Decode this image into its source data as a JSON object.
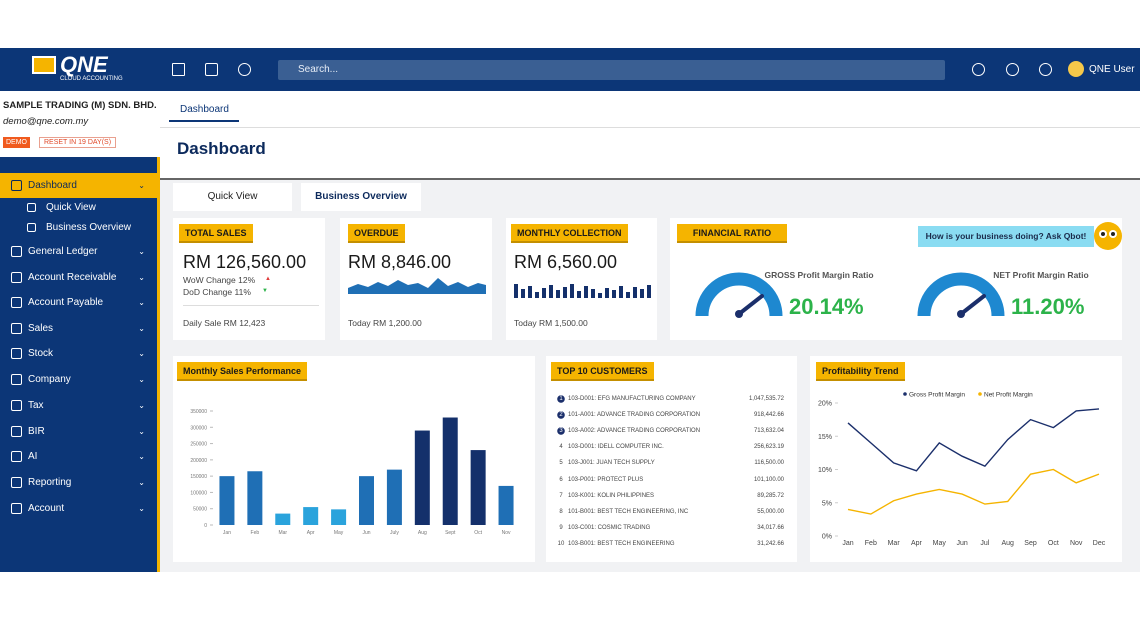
{
  "topbar": {
    "logo": "QNE",
    "logo_sub": "CLOUD ACCOUNTING",
    "search": "Search...",
    "user": "QNE User"
  },
  "company": {
    "name": "SAMPLE TRADING (M) SDN. BHD.",
    "email": "demo@qne.com.my",
    "demo": "DEMO",
    "reset": "RESET IN 19 DAY(S)"
  },
  "menu": [
    "Dashboard",
    "Quick View",
    "Business Overview",
    "General Ledger",
    "Account Receivable",
    "Account Payable",
    "Sales",
    "Stock",
    "Company",
    "Tax",
    "BIR",
    "AI",
    "Reporting",
    "Account"
  ],
  "page_tab": "Dashboard",
  "heading": "Dashboard",
  "tabs": [
    "Quick View",
    "Business Overview"
  ],
  "cards": {
    "total_sales": {
      "title": "TOTAL SALES",
      "amount": "RM 126,560.00",
      "wow": "WoW Change 12%",
      "dod": "DoD Change 11%",
      "footer": "Daily Sale RM 12,423"
    },
    "overdue": {
      "title": "OVERDUE",
      "amount": "RM 8,846.00",
      "footer": "Today RM 1,200.00"
    },
    "collection": {
      "title": "MONTHLY COLLECTION",
      "amount": "RM 6,560.00",
      "footer": "Today RM 1,500.00"
    },
    "financial": {
      "title": "FINANCIAL RATIO",
      "gross_label": "GROSS Profit Margin Ratio",
      "gross_value": "20.14%",
      "net_label": "NET Profit Margin Ratio",
      "net_value": "11.20%",
      "qbot": "How is your business doing? Ask Qbot!"
    }
  },
  "sales_chart": {
    "type": "bar",
    "title": "Monthly Sales Performance",
    "categories": [
      "Jan",
      "Feb",
      "Mar",
      "Apr",
      "May",
      "Jun",
      "July",
      "Aug",
      "Sept",
      "Oct",
      "Nov"
    ],
    "values": [
      150000,
      165000,
      35000,
      55000,
      48000,
      150000,
      170000,
      290000,
      330000,
      230000,
      120000
    ],
    "colors": [
      "#1f6fb5",
      "#1f6fb5",
      "#2aa3dc",
      "#2aa3dc",
      "#2aa3dc",
      "#1f6fb5",
      "#1f6fb5",
      "#14306b",
      "#14306b",
      "#14306b",
      "#1f6fb5"
    ],
    "ylim": [
      0,
      350000
    ],
    "yticks": [
      0,
      50000,
      100000,
      150000,
      200000,
      250000,
      300000,
      350000
    ]
  },
  "customers": {
    "title": "TOP 10 CUSTOMERS",
    "rows": [
      [
        "1",
        "103-D001: EFG MANUFACTURING COMPANY",
        "1,047,535.72"
      ],
      [
        "2",
        "101-A001: ADVANCE TRADING CORPORATION",
        "918,442.66"
      ],
      [
        "3",
        "103-A002: ADVANCE TRADING CORPORATION",
        "713,632.04"
      ],
      [
        "4",
        "103-D001: IDELL COMPUTER INC.",
        "256,623.19"
      ],
      [
        "5",
        "103-J001: JUAN TECH SUPPLY",
        "116,500.00"
      ],
      [
        "6",
        "103-P001: PROTECT PLUS",
        "101,100.00"
      ],
      [
        "7",
        "103-K001: KOLIN PHILIPPINES",
        "89,285.72"
      ],
      [
        "8",
        "101-B001: BEST TECH ENGINEERING, INC",
        "55,000.00"
      ],
      [
        "9",
        "103-C001: COSMIC TRADING",
        "34,017.66"
      ],
      [
        "10",
        "103-B001: BEST TECH ENGINEERING",
        "31,242.66"
      ]
    ]
  },
  "trend_chart": {
    "type": "line",
    "title": "Profitability Trend",
    "categories": [
      "Jan",
      "Feb",
      "Mar",
      "Apr",
      "May",
      "Jun",
      "Jul",
      "Aug",
      "Sep",
      "Oct",
      "Nov",
      "Dec"
    ],
    "series": [
      {
        "name": "Gross Profit Margin",
        "color": "#1b2f6b",
        "values": [
          17,
          14,
          11,
          9.8,
          14,
          12,
          10.5,
          14.5,
          17.5,
          16.3,
          18.8,
          19.1
        ]
      },
      {
        "name": "Net Profit Margin",
        "color": "#f5b400",
        "values": [
          4,
          3.3,
          5.3,
          6.3,
          7,
          6.3,
          4.8,
          5.2,
          9.3,
          10,
          8,
          9.3
        ]
      }
    ],
    "ylim": [
      0,
      20
    ],
    "yticks": [
      {
        "value": 0,
        "label": "0%"
      },
      {
        "value": 5,
        "label": "5%"
      },
      {
        "value": 10,
        "label": "10%"
      },
      {
        "value": 15,
        "label": "15%"
      },
      {
        "value": 20,
        "label": "20%"
      }
    ]
  }
}
